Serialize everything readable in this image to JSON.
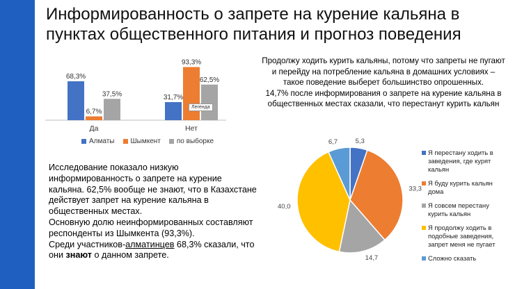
{
  "title": "Информированность о запрете на курение кальяна в пунктах общественного питания и прогноз поведения",
  "colors": {
    "almaty": "#4472c4",
    "shymkent": "#ed7d31",
    "sample": "#a5a5a5",
    "band": "#1f5fbf",
    "yellow": "#ffc000",
    "lightblue": "#5b9bd5"
  },
  "tooltip": "Легенда",
  "chart_data": [
    {
      "type": "bar",
      "categories": [
        "Да",
        "Нет"
      ],
      "series": [
        {
          "name": "Алматы",
          "values": [
            68.3,
            31.7
          ],
          "labels": [
            "68,3%",
            "31,7%"
          ]
        },
        {
          "name": "Шымкент",
          "values": [
            6.7,
            93.3
          ],
          "labels": [
            "6,7%",
            "93,3%"
          ]
        },
        {
          "name": "по выборке",
          "values": [
            37.5,
            62.5
          ],
          "labels": [
            "37,5%",
            "62,5%"
          ]
        }
      ],
      "ylim": [
        0,
        100
      ],
      "legend": "bottom"
    },
    {
      "type": "pie",
      "slices": [
        {
          "label": "Я перестану ходить в заведения, где курят кальян",
          "value": 5.3,
          "value_label": "5,3"
        },
        {
          "label": "Я буду курить кальян дома",
          "value": 33.3,
          "value_label": "33,3"
        },
        {
          "label": "Я совсем перестану курить кальян",
          "value": 14.7,
          "value_label": "14,7"
        },
        {
          "label": "Я продолжу ходить в подобные заведения, запрет меня не пугает",
          "value": 40.0,
          "value_label": "40,0"
        },
        {
          "label": "Сложно сказать",
          "value": 6.7,
          "value_label": "6,7"
        }
      ],
      "legend": "right"
    }
  ],
  "left_text": {
    "p1": "Исследование показало низкую информированность о запрете на курение кальяна. 62,5% вообще не знают, что в Казахстане действует запрет на курение кальяна в общественных местах.",
    "p2": "Основную долю неинформированных составляют респонденты из Шымкента (93,3%).",
    "p3_a": "Среди участников-",
    "p3_b": "алматинцев",
    "p3_c": " 68,3% сказали, что они ",
    "p3_d": "знают",
    "p3_e": " о данном запрете."
  },
  "right_text": {
    "p1": "Продолжу ходить курить кальяны, потому что запреты не пугают и перейду на потребление кальяна в домашних условиях – такое поведение выберет большинство опрошенных.",
    "p2": "14,7% после информирования о запрете на курение кальяна в общественных местах сказали, что перестанут курить кальян"
  }
}
